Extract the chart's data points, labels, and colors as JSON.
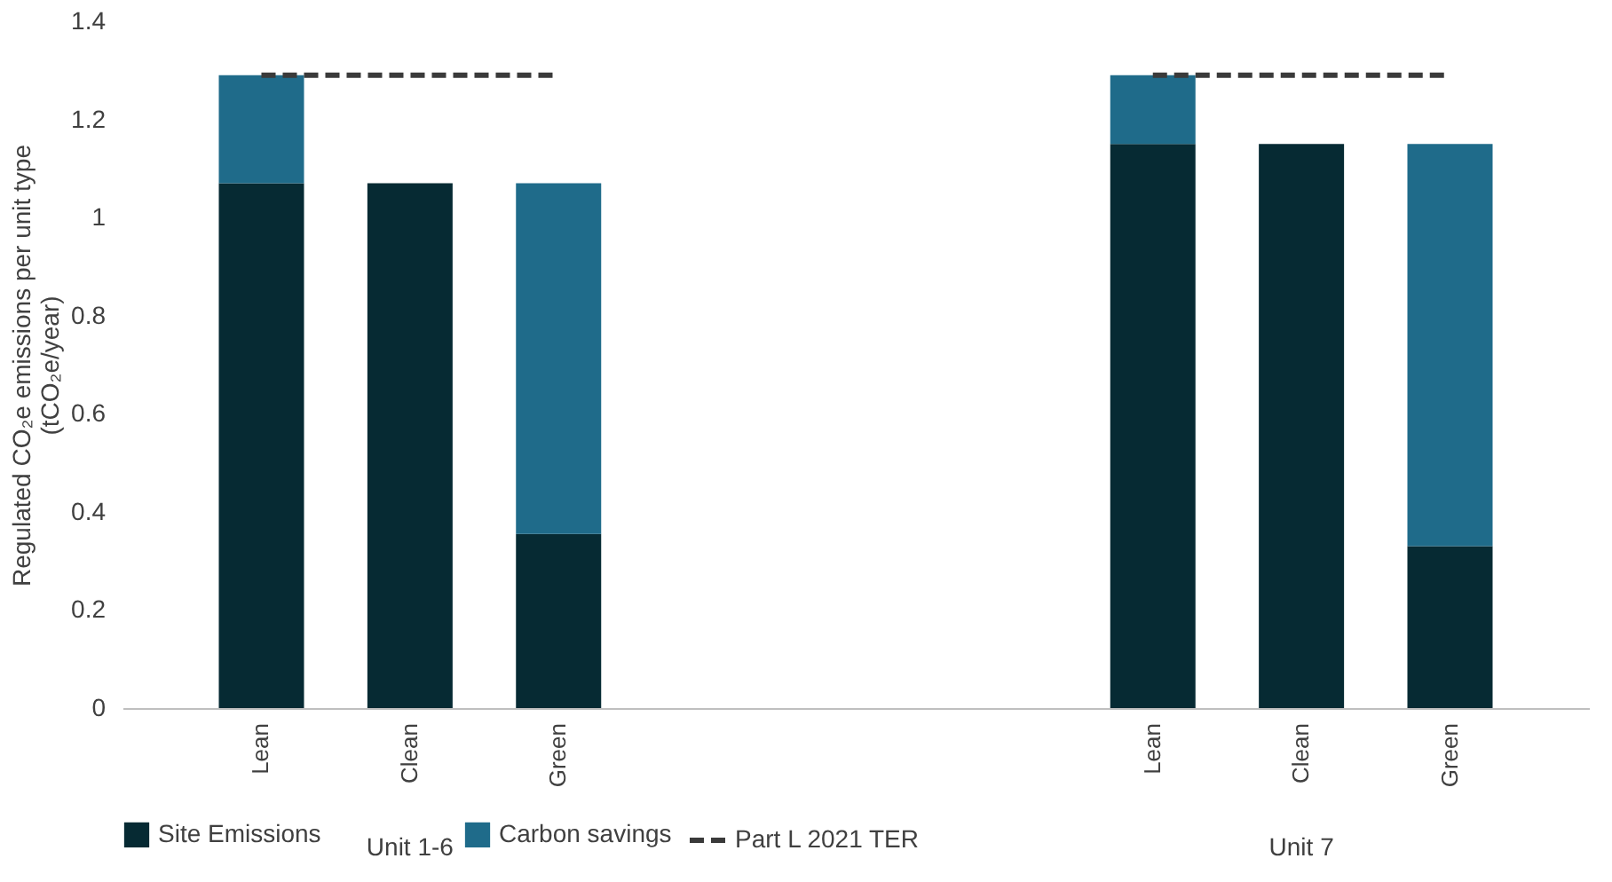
{
  "chart_data": {
    "type": "bar",
    "stacked": true,
    "ylabel": "Regulated CO₂e emissions per unit type (tCO₂e/year)",
    "categories": [
      "Lean",
      "Clean",
      "Green",
      null,
      null,
      null,
      "Lean",
      "Clean",
      "Green"
    ],
    "series": [
      {
        "name": "Site Emissions",
        "color": "#062a33",
        "values": [
          1.07,
          1.07,
          0.355,
          null,
          null,
          null,
          1.15,
          1.15,
          0.33
        ]
      },
      {
        "name": "Carbon savings",
        "color": "#1f6b8a",
        "values": [
          0.22,
          null,
          0.715,
          null,
          null,
          null,
          0.14,
          null,
          0.82
        ]
      },
      {
        "name": "Part L 2021 TER",
        "type": "line",
        "line_style": "dashed",
        "color": "#3a3a3a",
        "values": [
          1.29,
          1.29,
          1.29,
          null,
          null,
          null,
          1.29,
          1.29,
          1.29
        ]
      }
    ],
    "annotations": [
      "Unit 1-6",
      "Unit 7"
    ],
    "ylim": [
      0,
      1.4
    ],
    "yticks": [
      0,
      0.2,
      0.4,
      0.6,
      0.8,
      1,
      1.2,
      1.4
    ],
    "grid": false,
    "legend": "bottom"
  }
}
